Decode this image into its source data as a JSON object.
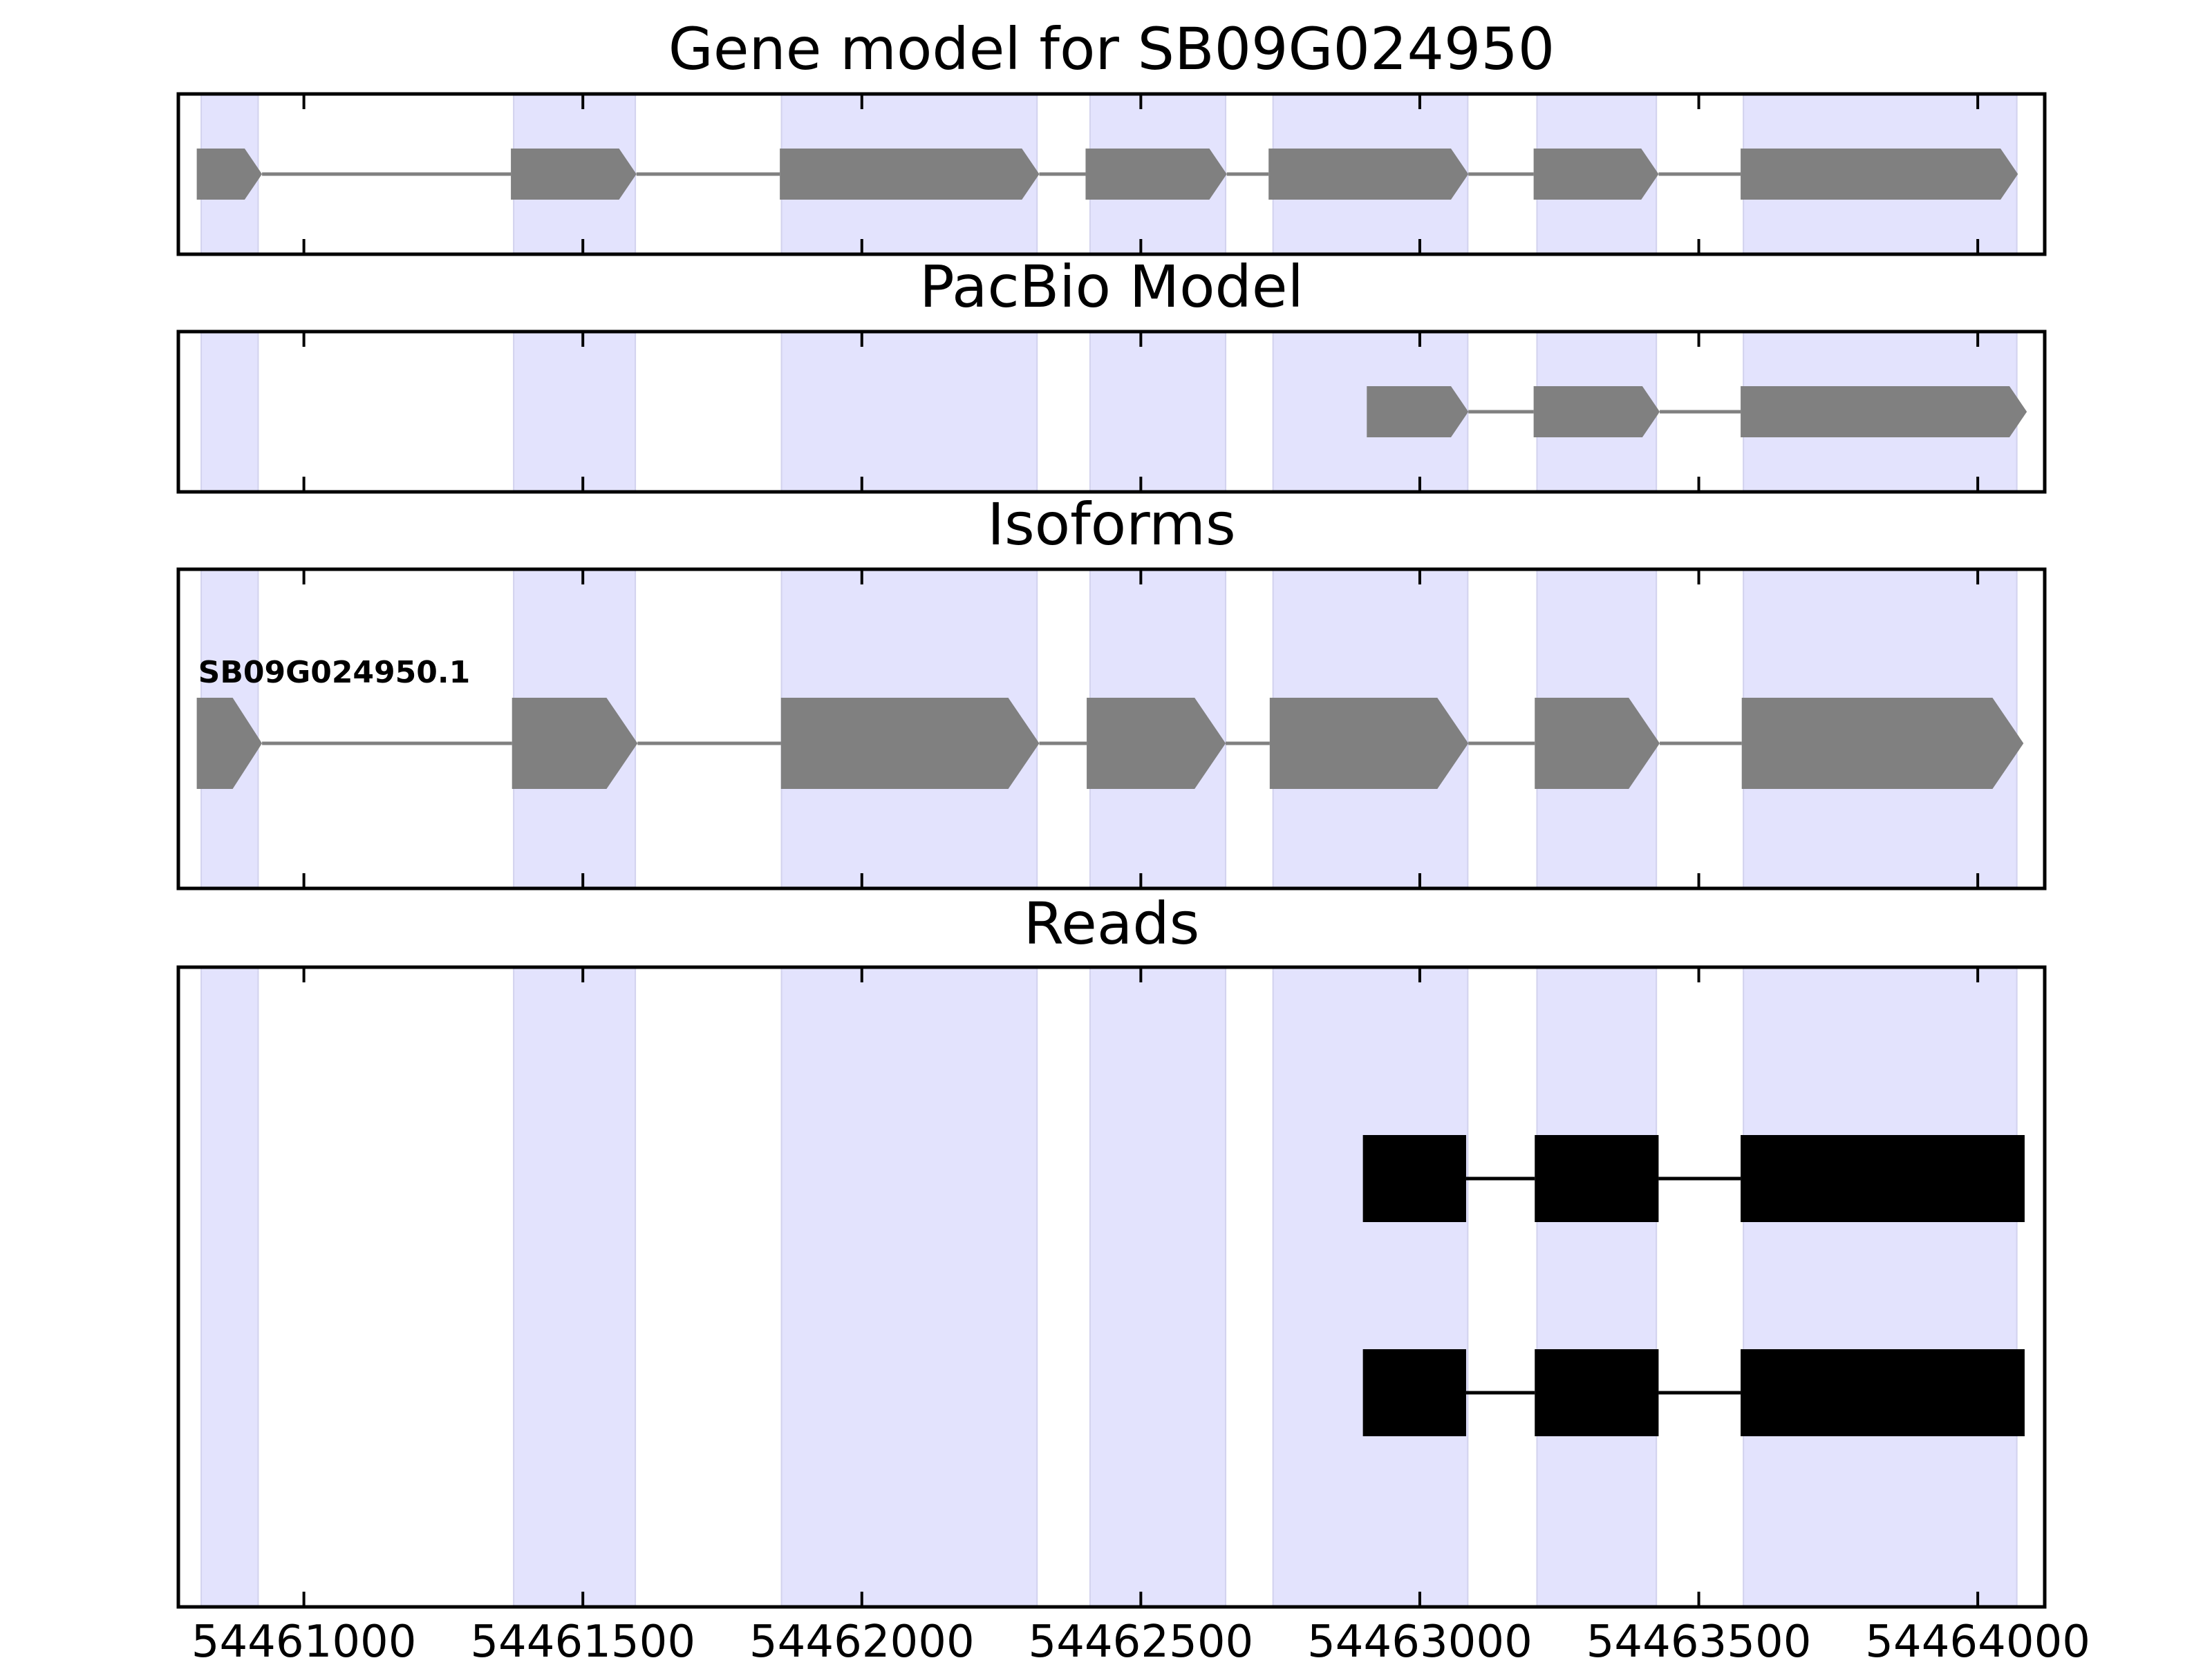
{
  "chart_data": {
    "type": "gene_track",
    "x_ticks": [
      54461000,
      54461500,
      54462000,
      54462500,
      54463000,
      54463500,
      54464000
    ],
    "xlim": [
      54460775,
      54464120
    ],
    "exon_shading_color": "#e3e3fd",
    "feature_color": "#808080",
    "read_color": "#000000",
    "exon_regions": [
      [
        54460816,
        54460918
      ],
      [
        54461376,
        54461594
      ],
      [
        54461856,
        54462314
      ],
      [
        54462409,
        54462652
      ],
      [
        54462737,
        54463086
      ],
      [
        54463210,
        54463424
      ],
      [
        54463580,
        54464070
      ]
    ],
    "panels": [
      {
        "name": "gene-model",
        "title": "Gene model for SB09G024950",
        "strand": "+",
        "exons": [
          [
            54460808,
            54460925
          ],
          [
            54461371,
            54461596
          ],
          [
            54461853,
            54462318
          ],
          [
            54462401,
            54462654
          ],
          [
            54462729,
            54463087
          ],
          [
            54463204,
            54463428
          ],
          [
            54463575,
            54464072
          ]
        ]
      },
      {
        "name": "pacbio-model",
        "title": "PacBio Model",
        "strand": "+",
        "exons": [
          [
            54462905,
            54463087
          ],
          [
            54463204,
            54463430
          ],
          [
            54463575,
            54464088
          ]
        ]
      },
      {
        "name": "isoforms",
        "title": "Isoforms",
        "isoforms": [
          {
            "label": "SB09G024950.1",
            "strand": "+",
            "exons": [
              [
                54460808,
                54460925
              ],
              [
                54461373,
                54461598
              ],
              [
                54461855,
                54462318
              ],
              [
                54462403,
                54462652
              ],
              [
                54462731,
                54463087
              ],
              [
                54463206,
                54463430
              ],
              [
                54463577,
                54464082
              ]
            ]
          }
        ]
      },
      {
        "name": "reads",
        "title": "Reads",
        "reads": [
          {
            "exons": [
              [
                54462898,
                54463083
              ],
              [
                54463206,
                54463428
              ],
              [
                54463575,
                54464084
              ]
            ]
          },
          {
            "exons": [
              [
                54462898,
                54463083
              ],
              [
                54463206,
                54463428
              ],
              [
                54463575,
                54464084
              ]
            ]
          }
        ]
      }
    ]
  }
}
